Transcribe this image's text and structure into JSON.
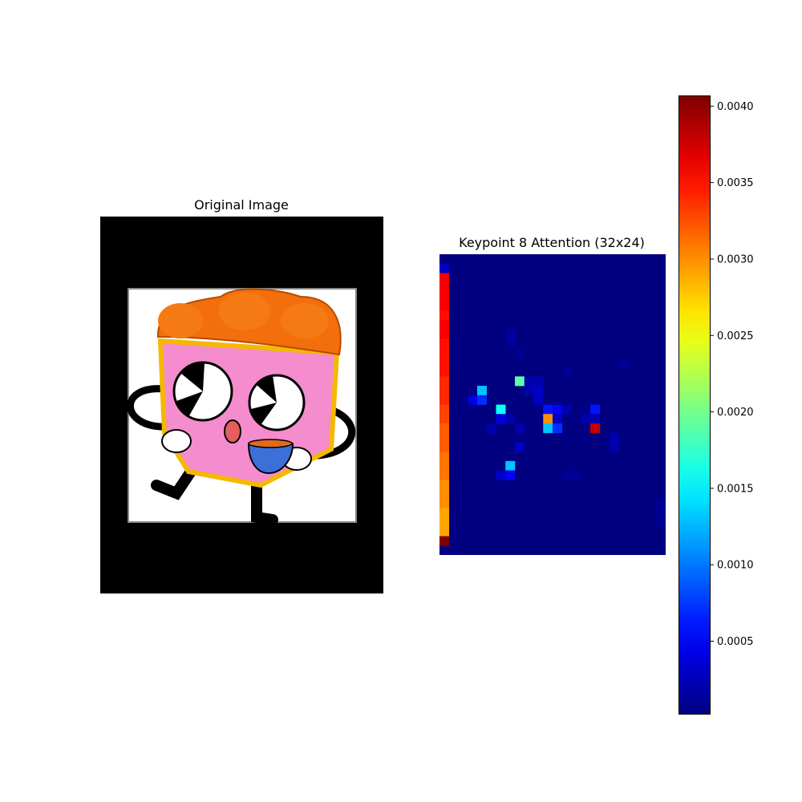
{
  "left_panel": {
    "title": "Original Image",
    "image_description_icon": "chicken-bucket-mascot-icon"
  },
  "chart_data": {
    "type": "heatmap",
    "title": "Keypoint 8 Attention (32x24)",
    "rows": 32,
    "cols": 24,
    "colormap": "jet",
    "vmin": 2e-05,
    "vmax": 0.00407,
    "background_value": 2e-05,
    "cells": [
      {
        "r": 1,
        "c": 0,
        "v": 0.0003
      },
      {
        "r": 2,
        "c": 0,
        "v": 0.0036
      },
      {
        "r": 3,
        "c": 0,
        "v": 0.0036
      },
      {
        "r": 4,
        "c": 0,
        "v": 0.0036
      },
      {
        "r": 5,
        "c": 0,
        "v": 0.0036
      },
      {
        "r": 6,
        "c": 0,
        "v": 0.0035
      },
      {
        "r": 7,
        "c": 0,
        "v": 0.0036
      },
      {
        "r": 8,
        "c": 0,
        "v": 0.0036
      },
      {
        "r": 9,
        "c": 0,
        "v": 0.0035
      },
      {
        "r": 10,
        "c": 0,
        "v": 0.0035
      },
      {
        "r": 11,
        "c": 0,
        "v": 0.0035
      },
      {
        "r": 12,
        "c": 0,
        "v": 0.0035
      },
      {
        "r": 13,
        "c": 0,
        "v": 0.0034
      },
      {
        "r": 14,
        "c": 0,
        "v": 0.0034
      },
      {
        "r": 15,
        "c": 0,
        "v": 0.0034
      },
      {
        "r": 16,
        "c": 0,
        "v": 0.0033
      },
      {
        "r": 17,
        "c": 0,
        "v": 0.0033
      },
      {
        "r": 18,
        "c": 0,
        "v": 0.0032
      },
      {
        "r": 19,
        "c": 0,
        "v": 0.0032
      },
      {
        "r": 20,
        "c": 0,
        "v": 0.0032
      },
      {
        "r": 21,
        "c": 0,
        "v": 0.0031
      },
      {
        "r": 22,
        "c": 0,
        "v": 0.0031
      },
      {
        "r": 23,
        "c": 0,
        "v": 0.0031
      },
      {
        "r": 24,
        "c": 0,
        "v": 0.003
      },
      {
        "r": 25,
        "c": 0,
        "v": 0.003
      },
      {
        "r": 26,
        "c": 0,
        "v": 0.003
      },
      {
        "r": 27,
        "c": 0,
        "v": 0.0029
      },
      {
        "r": 28,
        "c": 0,
        "v": 0.0029
      },
      {
        "r": 29,
        "c": 0,
        "v": 0.0029
      },
      {
        "r": 30,
        "c": 0,
        "v": 0.0041
      },
      {
        "r": 8,
        "c": 7,
        "v": 0.00015
      },
      {
        "r": 9,
        "c": 7,
        "v": 0.00012
      },
      {
        "r": 10,
        "c": 8,
        "v": 0.0001
      },
      {
        "r": 12,
        "c": 13,
        "v": 0.0001
      },
      {
        "r": 11,
        "c": 19,
        "v": 0.0001
      },
      {
        "r": 13,
        "c": 8,
        "v": 0.0019
      },
      {
        "r": 13,
        "c": 9,
        "v": 0.0002
      },
      {
        "r": 13,
        "c": 10,
        "v": 0.0002
      },
      {
        "r": 14,
        "c": 4,
        "v": 0.0013
      },
      {
        "r": 14,
        "c": 9,
        "v": 0.0002
      },
      {
        "r": 14,
        "c": 10,
        "v": 0.0003
      },
      {
        "r": 15,
        "c": 3,
        "v": 0.0004
      },
      {
        "r": 15,
        "c": 4,
        "v": 0.0007
      },
      {
        "r": 15,
        "c": 10,
        "v": 0.0003
      },
      {
        "r": 16,
        "c": 6,
        "v": 0.0016
      },
      {
        "r": 16,
        "c": 11,
        "v": 0.0006
      },
      {
        "r": 16,
        "c": 12,
        "v": 0.0005
      },
      {
        "r": 16,
        "c": 16,
        "v": 0.0006
      },
      {
        "r": 16,
        "c": 13,
        "v": 0.0002
      },
      {
        "r": 17,
        "c": 6,
        "v": 0.0004
      },
      {
        "r": 17,
        "c": 7,
        "v": 0.0002
      },
      {
        "r": 17,
        "c": 11,
        "v": 0.003
      },
      {
        "r": 17,
        "c": 12,
        "v": 0.0003
      },
      {
        "r": 17,
        "c": 15,
        "v": 0.0002
      },
      {
        "r": 17,
        "c": 16,
        "v": 0.0002
      },
      {
        "r": 18,
        "c": 5,
        "v": 0.0002
      },
      {
        "r": 18,
        "c": 8,
        "v": 0.0002
      },
      {
        "r": 18,
        "c": 11,
        "v": 0.0013
      },
      {
        "r": 18,
        "c": 12,
        "v": 0.0007
      },
      {
        "r": 18,
        "c": 16,
        "v": 0.0038
      },
      {
        "r": 19,
        "c": 18,
        "v": 0.0002
      },
      {
        "r": 20,
        "c": 8,
        "v": 0.0003
      },
      {
        "r": 20,
        "c": 18,
        "v": 0.0002
      },
      {
        "r": 22,
        "c": 7,
        "v": 0.0013
      },
      {
        "r": 23,
        "c": 6,
        "v": 0.0003
      },
      {
        "r": 23,
        "c": 7,
        "v": 0.0005
      },
      {
        "r": 23,
        "c": 13,
        "v": 0.0001
      },
      {
        "r": 23,
        "c": 14,
        "v": 0.0001
      },
      {
        "r": 26,
        "c": 23,
        "v": 0.0001
      },
      {
        "r": 27,
        "c": 23,
        "v": 0.0001
      },
      {
        "r": 28,
        "c": 23,
        "v": 0.0001
      }
    ],
    "colorbar": {
      "ticks": [
        0.0005,
        0.001,
        0.0015,
        0.002,
        0.0025,
        0.003,
        0.0035,
        0.004
      ],
      "tick_labels": [
        "0.0005",
        "0.0010",
        "0.0015",
        "0.0020",
        "0.0025",
        "0.0030",
        "0.0035",
        "0.0040"
      ]
    }
  }
}
